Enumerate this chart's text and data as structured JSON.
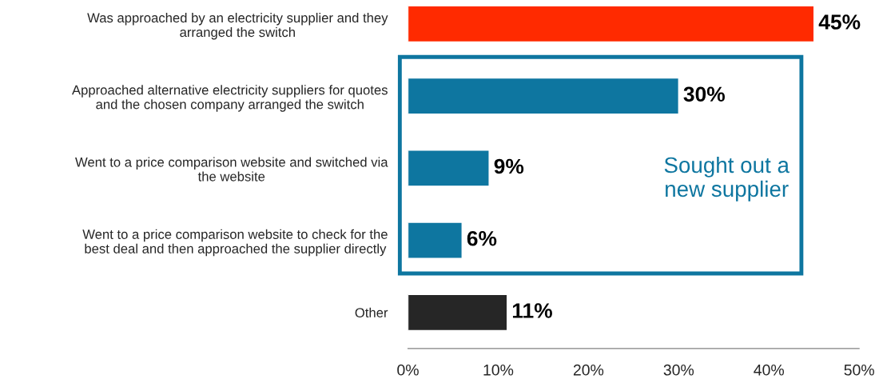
{
  "chart_data": {
    "type": "bar",
    "orientation": "horizontal",
    "categories": [
      "Was approached by an electricity supplier and they\narranged the switch",
      "Approached alternative electricity suppliers for quotes\nand the chosen company arranged the switch",
      "Went to a price comparison website and switched via\nthe website",
      "Went to a price comparison website to check for the\nbest deal and then approached the supplier directly",
      "Other"
    ],
    "values": [
      45,
      30,
      9,
      6,
      11
    ],
    "colors": [
      "#ff2a00",
      "#0e76a0",
      "#0e76a0",
      "#0e76a0",
      "#262626"
    ],
    "value_labels": [
      "45%",
      "30%",
      "9%",
      "6%",
      "11%"
    ],
    "xlim": [
      0,
      50
    ],
    "xticks": [
      {
        "value": 0,
        "label": "0%"
      },
      {
        "value": 10,
        "label": "10%"
      },
      {
        "value": 20,
        "label": "20%"
      },
      {
        "value": 30,
        "label": "30%"
      },
      {
        "value": 40,
        "label": "40%"
      },
      {
        "value": 50,
        "label": "50%"
      }
    ],
    "annotations": [
      "Sought out a\nnew supplier"
    ],
    "grid": false,
    "legend": false
  }
}
